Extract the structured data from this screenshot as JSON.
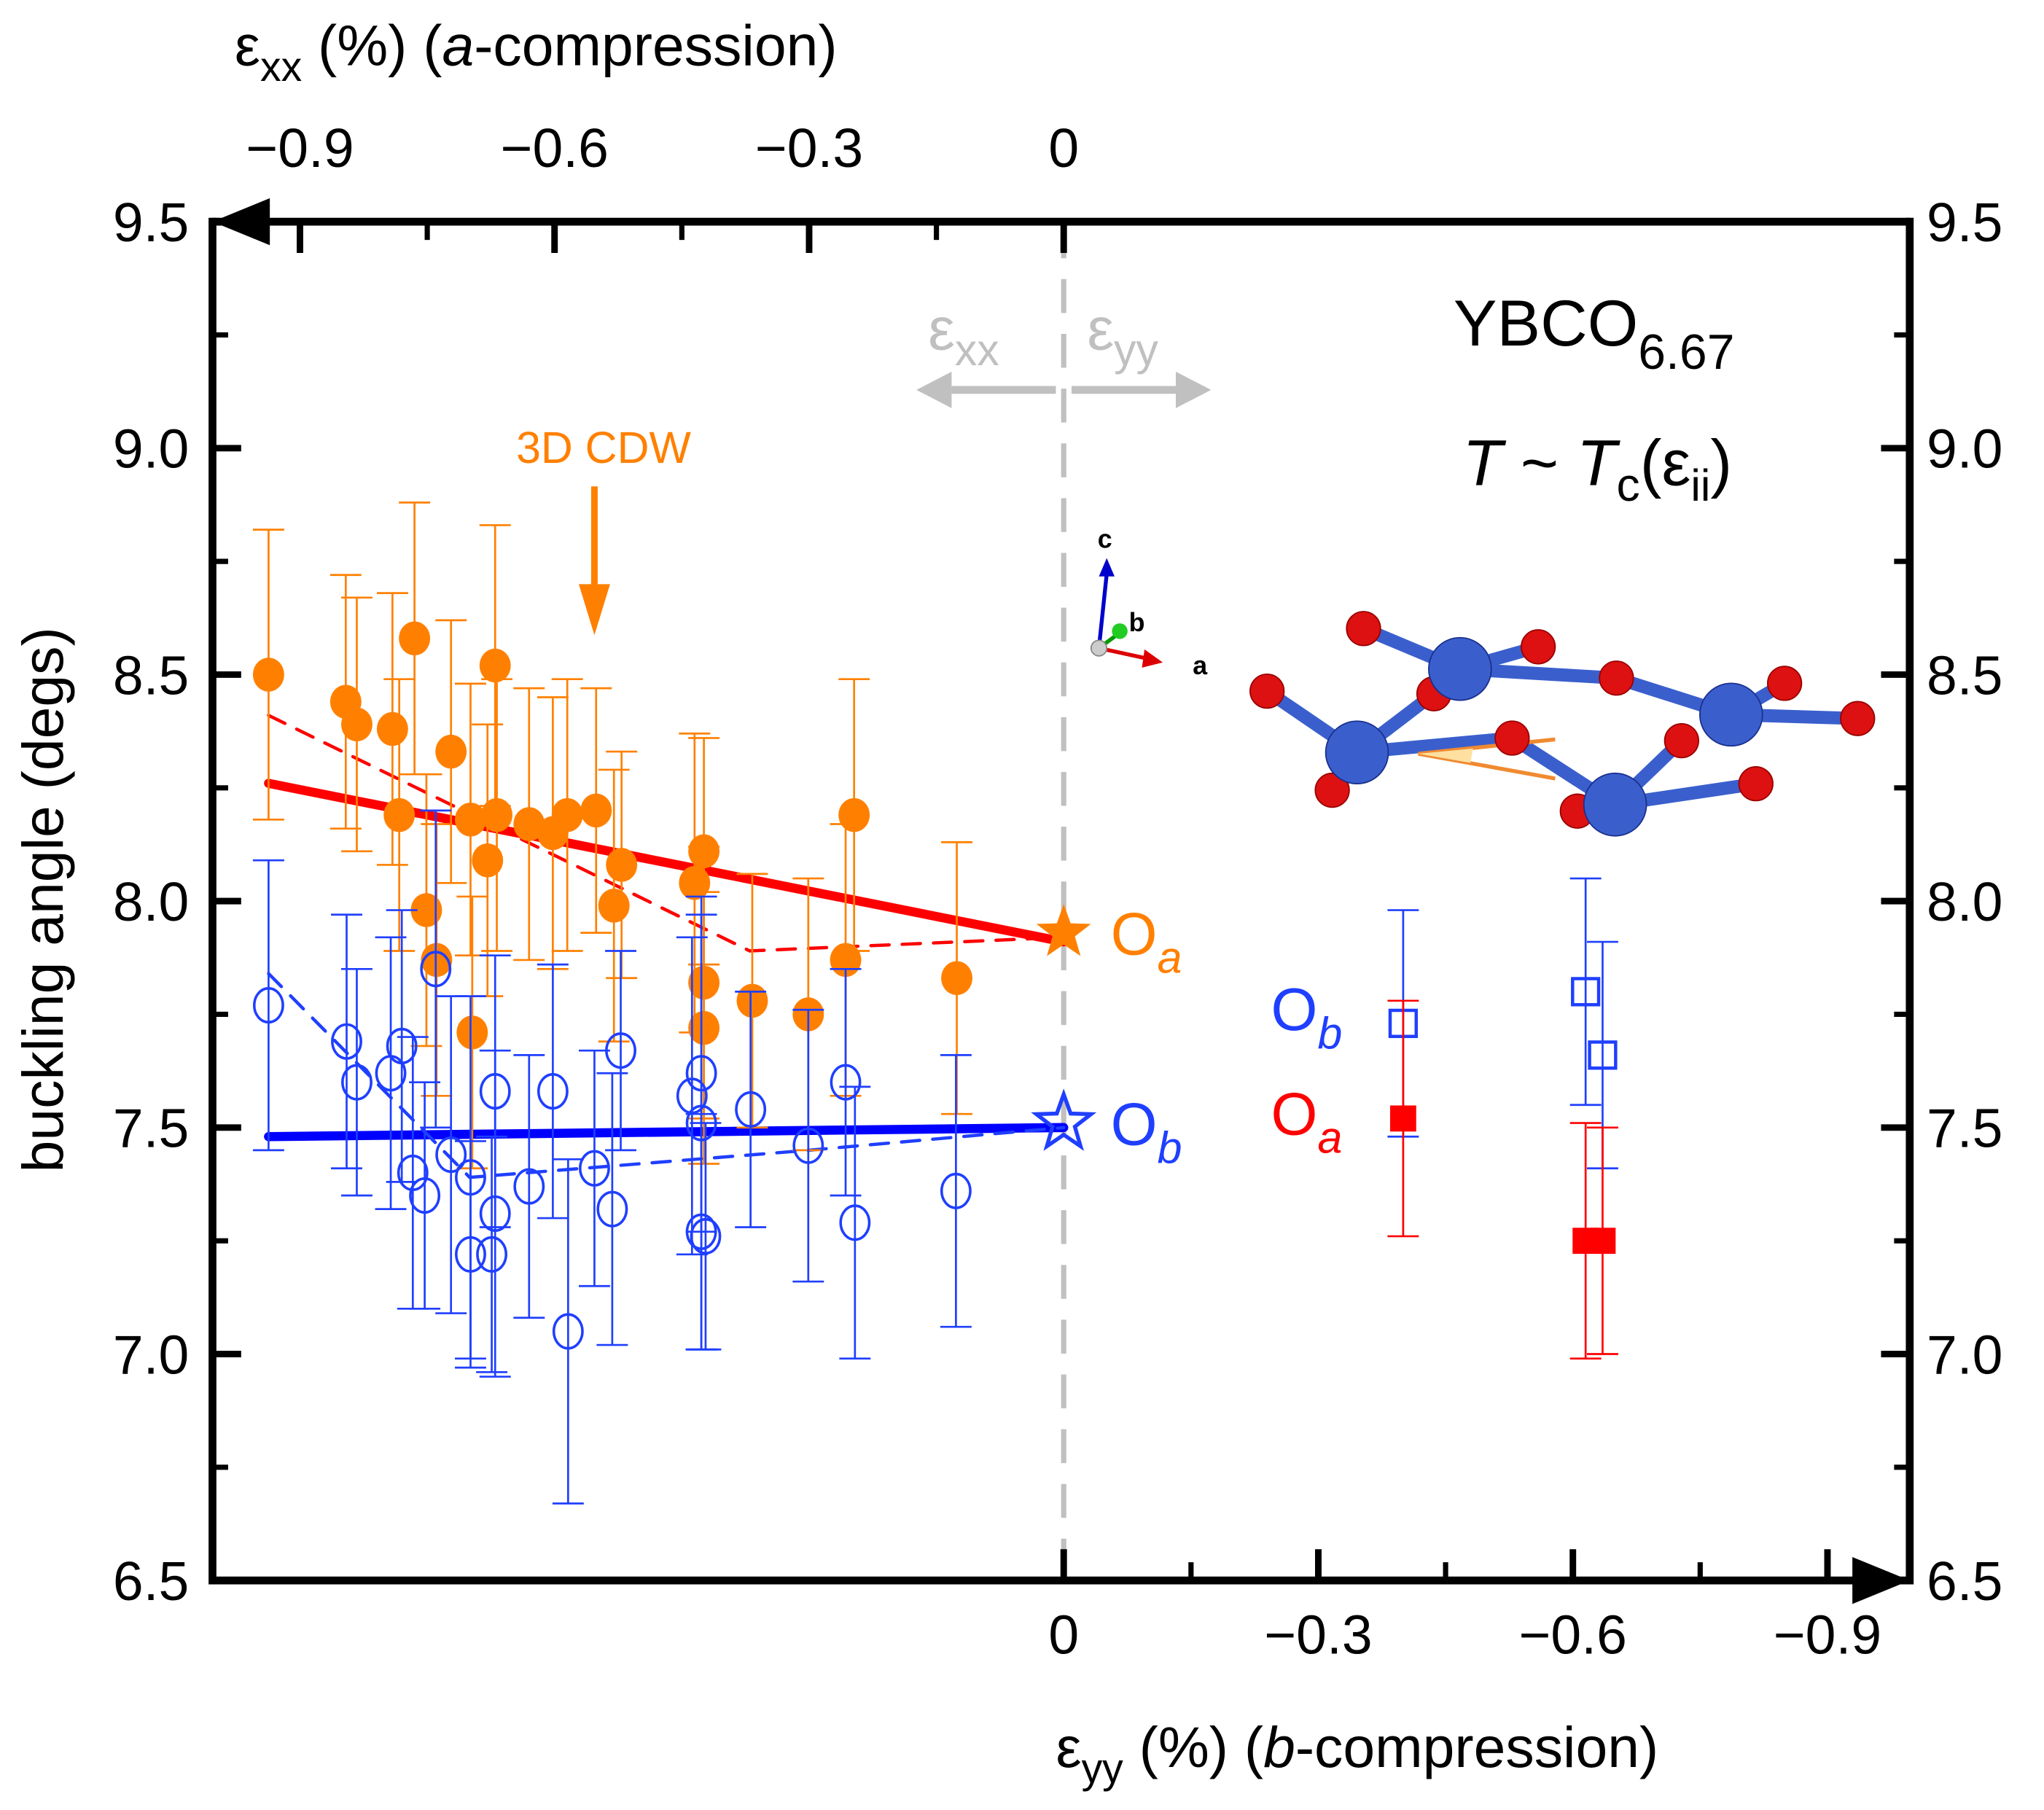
{
  "chart_data": {
    "type": "scatter",
    "title": "",
    "ylabel": "buckling angle (degs)",
    "ylim": [
      6.5,
      9.5
    ],
    "yticks": [
      "6.5",
      "7.0",
      "7.5",
      "8.0",
      "8.5",
      "9.0",
      "9.5"
    ],
    "top_axis": {
      "label_symbol": "ε",
      "label_sub": "xx",
      "label_rest": " (%) (",
      "label_italic": "a",
      "label_end": "-compression)",
      "ticks": [
        "−0.9",
        "−0.6",
        "−0.3",
        "0"
      ],
      "tick_values": [
        -0.9,
        -0.6,
        -0.3,
        0
      ],
      "range": [
        -0.94,
        0
      ]
    },
    "bottom_axis": {
      "label_symbol": "ε",
      "label_sub": "yy",
      "label_rest": " (%) (",
      "label_italic": "b",
      "label_end": "-compression)",
      "ticks": [
        "0",
        "−0.3",
        "−0.6",
        "−0.9"
      ],
      "tick_values": [
        0,
        -0.3,
        -0.6,
        -0.9
      ],
      "range": [
        0,
        -0.94
      ]
    },
    "annotations": {
      "sample": "YBCO",
      "sample_sub": "6.67",
      "temp_T": "T",
      "temp_tilde": " ~ ",
      "temp_Tc": "T",
      "temp_c": "c",
      "temp_eps": "(ε",
      "temp_ii": "ii",
      "temp_close": ")",
      "cdw_label": "3D CDW",
      "cdw_arrow_x": -0.553,
      "strain_left": "ε",
      "strain_left_sub": "xx",
      "strain_right": "ε",
      "strain_right_sub": "yy",
      "Oa_star_label": "O",
      "Oa_star_sub": "a",
      "Ob_star_label": "O",
      "Ob_star_sub": "b",
      "Ob_legend": "O",
      "Ob_legend_sub": "b",
      "Oa_legend": "O",
      "Oa_legend_sub": "a",
      "crystal_axes": [
        "a",
        "b",
        "c"
      ]
    },
    "colors": {
      "orange": "#ff8000",
      "blue": "#1f3fff",
      "red": "#ff0000",
      "fit_blue": "#0000ff",
      "gray": "#c0c0c0"
    },
    "series": [
      {
        "name": "O_a (a-compression)",
        "marker": "filled-circle",
        "color": "orange",
        "x": [
          -0.937,
          -0.846,
          -0.833,
          -0.791,
          -0.783,
          -0.765,
          -0.751,
          -0.739,
          -0.722,
          -0.699,
          -0.697,
          -0.679,
          -0.67,
          -0.668,
          -0.63,
          -0.602,
          -0.585,
          -0.551,
          -0.53,
          -0.521,
          -0.435,
          -0.424,
          -0.424,
          -0.424,
          -0.367,
          -0.301,
          -0.257,
          -0.247,
          -0.126
        ],
        "y": [
          8.5,
          8.44,
          8.39,
          8.38,
          8.19,
          8.58,
          7.98,
          7.87,
          8.33,
          8.18,
          7.71,
          8.09,
          8.52,
          8.19,
          8.17,
          8.15,
          8.19,
          8.2,
          7.99,
          8.08,
          8.04,
          8.11,
          7.72,
          7.82,
          7.78,
          7.75,
          7.87,
          8.19,
          7.83
        ],
        "yerr": [
          0.32,
          0.28,
          0.28,
          0.3,
          0.3,
          0.3,
          0.3,
          0.3,
          0.29,
          0.3,
          0.3,
          0.3,
          0.31,
          0.3,
          0.3,
          0.3,
          0.3,
          0.27,
          0.3,
          0.25,
          0.33,
          0.25,
          0.3,
          0.3,
          0.28,
          0.3,
          0.3,
          0.3,
          0.3
        ]
      },
      {
        "name": "O_b (a-compression)",
        "marker": "open-circle",
        "color": "blue",
        "x": [
          -0.937,
          -0.845,
          -0.833,
          -0.793,
          -0.78,
          -0.767,
          -0.753,
          -0.74,
          -0.722,
          -0.699,
          -0.699,
          -0.674,
          -0.67,
          -0.67,
          -0.63,
          -0.602,
          -0.584,
          -0.553,
          -0.532,
          -0.522,
          -0.438,
          -0.427,
          -0.427,
          -0.427,
          -0.422,
          -0.369,
          -0.301,
          -0.257,
          -0.246,
          -0.127
        ],
        "y": [
          7.77,
          7.69,
          7.6,
          7.62,
          7.68,
          7.4,
          7.35,
          7.85,
          7.44,
          7.39,
          7.22,
          7.22,
          7.31,
          7.58,
          7.37,
          7.58,
          7.05,
          7.41,
          7.32,
          7.67,
          7.57,
          7.62,
          7.51,
          7.27,
          7.26,
          7.54,
          7.46,
          7.6,
          7.29,
          7.36
        ],
        "yerr": [
          0.32,
          0.28,
          0.25,
          0.3,
          0.3,
          0.3,
          0.25,
          0.35,
          0.35,
          0.4,
          0.25,
          0.26,
          0.36,
          0.3,
          0.29,
          0.28,
          0.38,
          0.26,
          0.3,
          0.22,
          0.35,
          0.35,
          0.5,
          0.26,
          0.25,
          0.26,
          0.3,
          0.25,
          0.3,
          0.3
        ]
      },
      {
        "name": "O_a star (unstrained)",
        "marker": "filled-star",
        "color": "orange",
        "x": [
          0
        ],
        "y": [
          7.93
        ]
      },
      {
        "name": "O_b star (unstrained)",
        "marker": "open-star",
        "color": "blue",
        "x": [
          0
        ],
        "y": [
          7.51
        ]
      },
      {
        "name": "O_b (b-compression)",
        "marker": "open-square",
        "color": "blue",
        "x_bottom": [
          -0.4,
          -0.615,
          -0.635
        ],
        "y": [
          7.73,
          7.8,
          7.66
        ],
        "yerr": [
          0.25,
          0.25,
          0.25
        ]
      },
      {
        "name": "O_a (b-compression)",
        "marker": "filled-square",
        "color": "red",
        "x_bottom": [
          -0.4,
          -0.615,
          -0.635
        ],
        "y": [
          7.52,
          7.25,
          7.25
        ],
        "yerr": [
          0.26,
          0.26,
          0.25
        ]
      }
    ],
    "fit_lines": [
      {
        "name": "O_a linear fit",
        "color": "red",
        "style": "solid",
        "x": [
          -0.937,
          0
        ],
        "y": [
          8.26,
          7.91
        ]
      },
      {
        "name": "O_a piecewise fit",
        "color": "red",
        "style": "dashed",
        "x": [
          -0.937,
          -0.37,
          0
        ],
        "y": [
          8.41,
          7.89,
          7.92
        ]
      },
      {
        "name": "O_b linear fit",
        "color": "fit_blue",
        "style": "solid",
        "x": [
          -0.937,
          0
        ],
        "y": [
          7.48,
          7.5
        ]
      },
      {
        "name": "O_b piecewise fit",
        "color": "blue",
        "style": "dashed",
        "x": [
          -0.937,
          -0.7,
          -0.3,
          0
        ],
        "y": [
          7.84,
          7.39,
          7.45,
          7.5
        ]
      }
    ]
  }
}
